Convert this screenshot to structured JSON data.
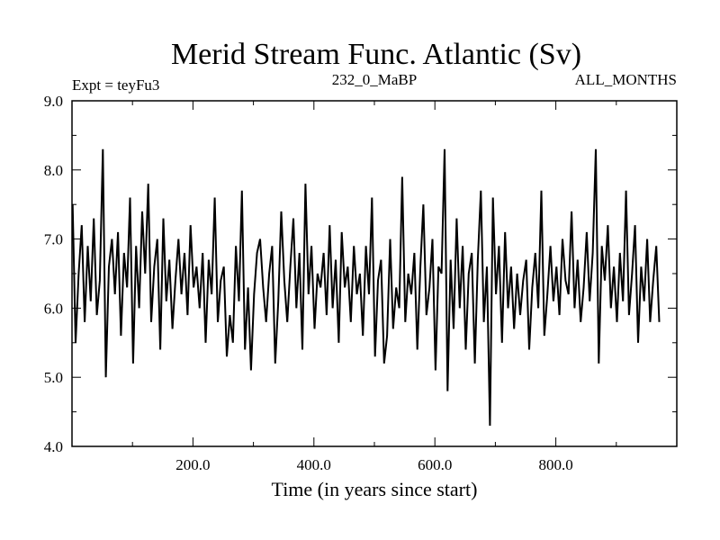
{
  "chart_data": {
    "type": "line",
    "title": "Merid Stream Func. Atlantic (Sv)",
    "subtitle_left": "Expt = teyFu3",
    "subtitle_center": "232_0_MaBP",
    "subtitle_right": "ALL_MONTHS",
    "xlabel": "Time (in years since start)",
    "ylabel": "",
    "xlim": [
      0,
      1000
    ],
    "ylim": [
      4.0,
      9.0
    ],
    "xticks": [
      200,
      400,
      600,
      800
    ],
    "xtick_labels": [
      "200.0",
      "400.0",
      "600.0",
      "800.0"
    ],
    "yticks": [
      4,
      5,
      6,
      7,
      8,
      9
    ],
    "ytick_labels": [
      "4.0",
      "5.0",
      "6.0",
      "7.0",
      "8.0",
      "9.0"
    ],
    "grid": false,
    "series": [
      {
        "name": "Merid Stream Func. Atlantic",
        "color": "#000000",
        "x_start": 1,
        "x_step": 5,
        "values": [
          7.5,
          5.5,
          6.5,
          7.2,
          5.8,
          6.9,
          6.1,
          7.3,
          5.9,
          6.4,
          8.3,
          5.0,
          6.6,
          7.0,
          6.2,
          7.1,
          5.6,
          6.8,
          6.3,
          7.6,
          5.2,
          6.9,
          6.0,
          7.4,
          6.5,
          7.8,
          5.8,
          6.6,
          7.0,
          5.4,
          7.3,
          6.1,
          6.7,
          5.7,
          6.4,
          7.0,
          6.2,
          6.8,
          5.9,
          7.2,
          6.3,
          6.6,
          6.0,
          6.8,
          5.5,
          6.7,
          6.2,
          7.6,
          5.8,
          6.4,
          6.6,
          5.3,
          5.9,
          5.5,
          6.9,
          6.1,
          7.7,
          5.4,
          6.3,
          5.1,
          6.2,
          6.8,
          7.0,
          6.3,
          5.8,
          6.5,
          6.9,
          5.2,
          6.1,
          7.4,
          6.4,
          5.8,
          6.6,
          7.3,
          6.0,
          6.8,
          5.4,
          7.8,
          6.2,
          6.9,
          5.7,
          6.5,
          6.3,
          6.8,
          5.9,
          7.2,
          6.0,
          6.7,
          5.5,
          7.1,
          6.3,
          6.6,
          5.8,
          6.9,
          6.2,
          6.5,
          5.6,
          6.9,
          6.2,
          7.6,
          5.3,
          6.4,
          6.7,
          5.2,
          5.6,
          7.0,
          5.7,
          6.3,
          6.0,
          7.9,
          5.8,
          6.5,
          6.2,
          6.8,
          5.4,
          6.6,
          7.5,
          5.9,
          6.3,
          7.0,
          5.1,
          6.6,
          6.5,
          8.3,
          4.8,
          6.7,
          5.7,
          7.3,
          6.0,
          6.9,
          5.4,
          6.5,
          6.8,
          5.2,
          6.7,
          7.7,
          5.8,
          6.6,
          4.3,
          7.6,
          6.2,
          6.9,
          5.5,
          7.1,
          6.0,
          6.6,
          5.7,
          6.5,
          5.9,
          6.4,
          6.7,
          5.4,
          6.3,
          6.8,
          6.0,
          7.7,
          5.6,
          6.2,
          6.9,
          6.1,
          6.6,
          5.9,
          7.0,
          6.4,
          6.2,
          7.4,
          6.0,
          6.7,
          5.8,
          6.3,
          7.1,
          6.1,
          6.8,
          8.3,
          5.2,
          6.9,
          6.4,
          7.2,
          6.0,
          6.6,
          5.8,
          6.8,
          6.1,
          7.7,
          5.9,
          6.5,
          7.2,
          5.5,
          6.6,
          6.1,
          7.0,
          5.8,
          6.4,
          6.9,
          5.8
        ]
      }
    ]
  }
}
